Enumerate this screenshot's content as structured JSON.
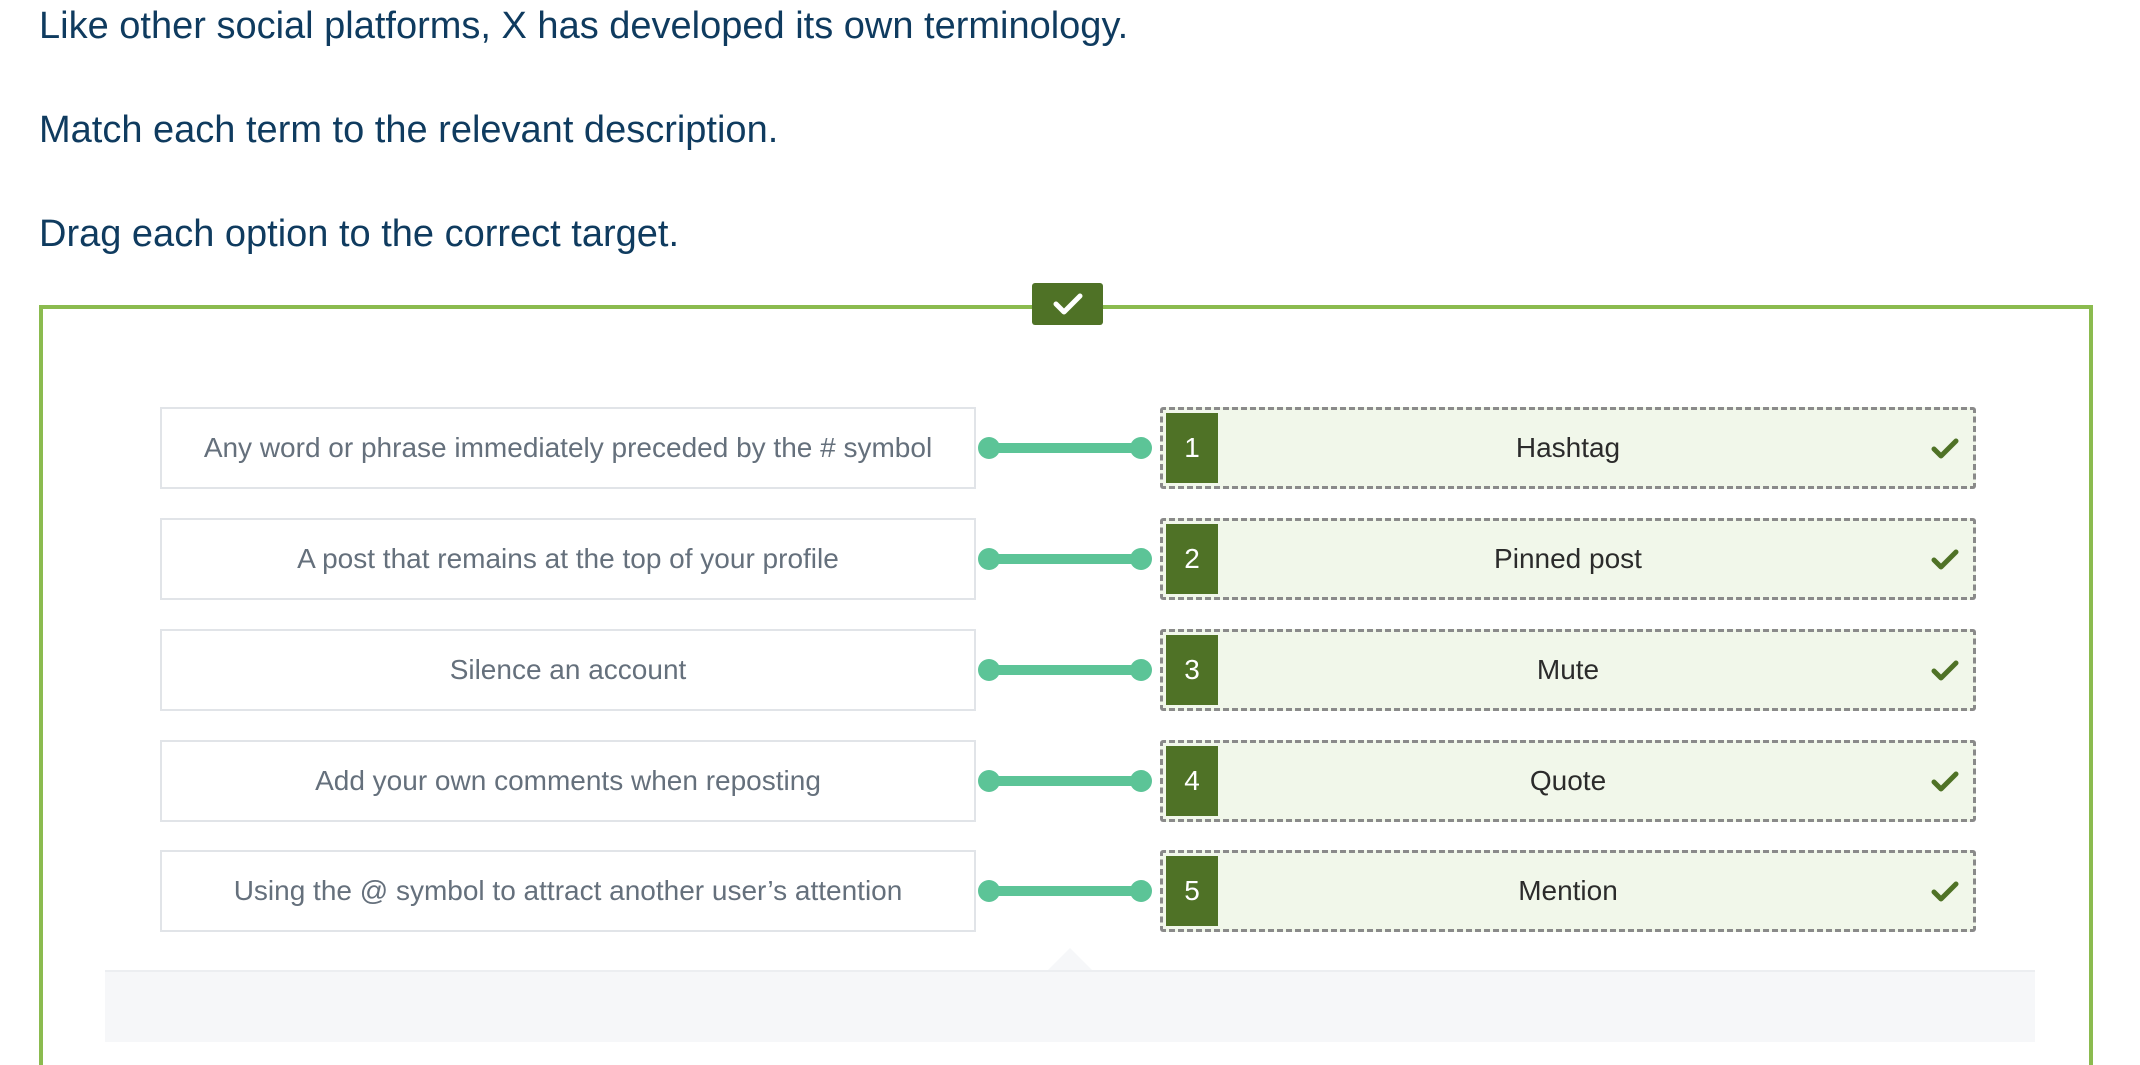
{
  "intro": {
    "line1": "Like other social platforms, X has developed its own terminology.",
    "line2": "Match each term to the relevant description.",
    "line3": "Drag each option to the correct target."
  },
  "status": {
    "icon": "check-icon",
    "state": "correct"
  },
  "pairs": [
    {
      "description": "Any word or phrase immediately preceded by the # symbol",
      "number": "1",
      "term": "Hashtag"
    },
    {
      "description": "A post that remains at the top of your profile",
      "number": "2",
      "term": "Pinned post"
    },
    {
      "description": "Silence an account",
      "number": "3",
      "term": "Mute"
    },
    {
      "description": "Add your own comments when reposting",
      "number": "4",
      "term": "Quote"
    },
    {
      "description": "Using the @ symbol to attract another user’s attention",
      "number": "5",
      "term": "Mention"
    }
  ],
  "colors": {
    "frame": "#8bbb4f",
    "accent": "#4f7226",
    "connector": "#5cc497",
    "heading_text": "#0f3b5f"
  }
}
